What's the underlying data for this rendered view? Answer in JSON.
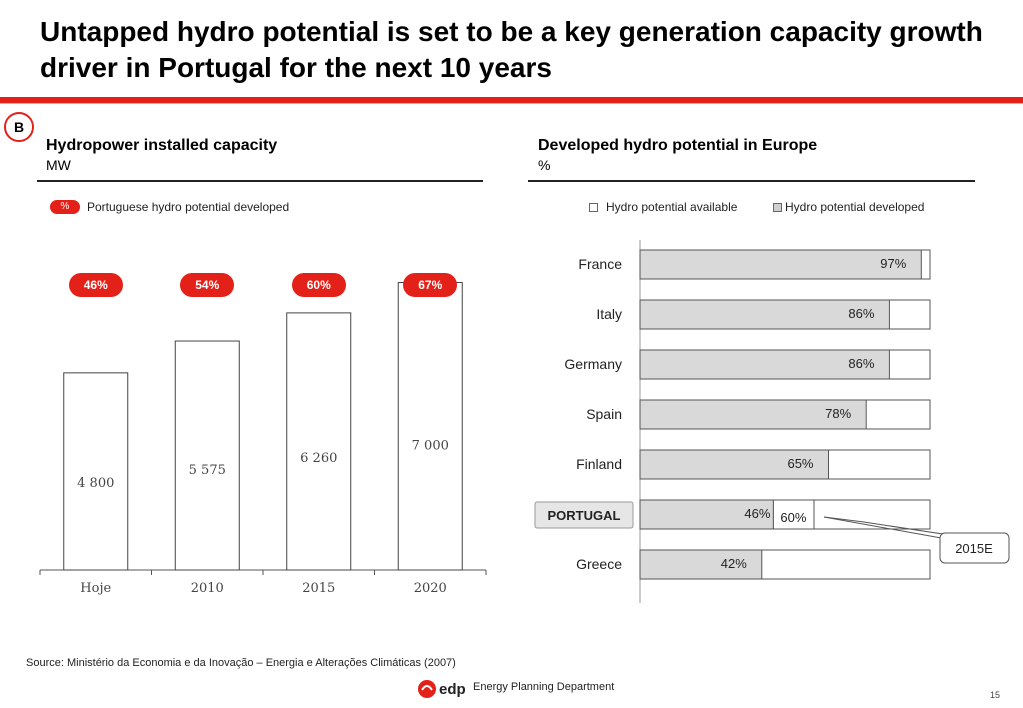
{
  "title": "Untapped hydro potential is set to be a key generation capacity growth driver in Portugal for the next 10 years",
  "section_badge": "B",
  "left_panel": {
    "title": "Hydropower installed capacity",
    "unit": "MW",
    "legend_pill": "%",
    "legend_label": "Portuguese hydro potential developed"
  },
  "right_panel": {
    "title": "Developed hydro potential in Europe",
    "unit": "%",
    "legend_available": "Hydro potential available",
    "legend_developed": "Hydro potential developed",
    "callout": "2015E"
  },
  "colors": {
    "accent": "#e32119",
    "bar_developed": "#d9d9d9",
    "bar_border": "#555555",
    "portugal_badge": "#e6e6e6"
  },
  "chart_data": [
    {
      "type": "bar",
      "title": "Hydropower installed capacity",
      "ylabel": "MW",
      "categories": [
        "Hoje",
        "2010",
        "2015",
        "2020"
      ],
      "values": [
        4800,
        5575,
        6260,
        7000
      ],
      "value_labels": [
        "4 800",
        "5 575",
        "6 260",
        "7 000"
      ],
      "percent_developed": [
        46,
        54,
        60,
        67
      ],
      "percent_labels": [
        "46%",
        "54%",
        "60%",
        "67%"
      ],
      "ylim": [
        0,
        8400
      ],
      "grid": false
    },
    {
      "type": "bar",
      "orientation": "horizontal",
      "stacked": true,
      "title": "Developed hydro potential in Europe",
      "xlabel": "%",
      "categories": [
        "France",
        "Italy",
        "Germany",
        "Spain",
        "Finland",
        "PORTUGAL",
        "Greece"
      ],
      "series": [
        {
          "name": "Hydro potential developed",
          "values": [
            97,
            86,
            86,
            78,
            65,
            46,
            42
          ]
        },
        {
          "name": "Hydro potential available",
          "values": [
            3,
            14,
            14,
            22,
            35,
            54,
            58
          ]
        }
      ],
      "value_labels": [
        "97%",
        "86%",
        "86%",
        "78%",
        "65%",
        "46%",
        "42%"
      ],
      "portugal_2015E": 60,
      "portugal_2015E_label": "60%",
      "xlim": [
        0,
        100
      ],
      "grid": false,
      "legend_position": "top"
    }
  ],
  "source": "Source: Ministério da Economia e da Inovação – Energia e Alterações Climáticas (2007)",
  "footer": {
    "logo_text": "edp",
    "department": "Energy Planning Department",
    "page_number": "15"
  }
}
